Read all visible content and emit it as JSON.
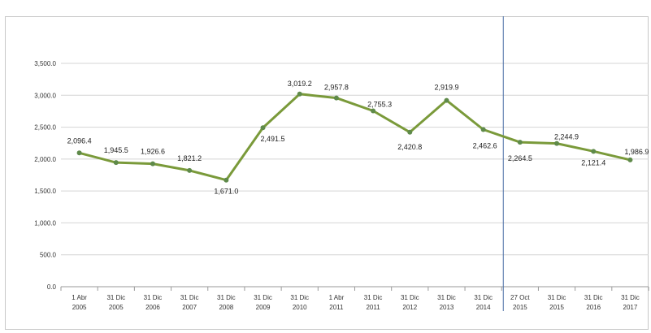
{
  "chart_data": {
    "type": "line",
    "title": "",
    "xlabel": "",
    "ylabel": "",
    "ylim": [
      0,
      3500
    ],
    "y_ticks": [
      "0.0",
      "500.0",
      "1,000.0",
      "1,500.0",
      "2,000.0",
      "2,500.0",
      "3,000.0",
      "3,500.0"
    ],
    "grid": true,
    "legend": "none",
    "line_color": "#7a9a3a",
    "marker_color": "#5f8a4a",
    "vline_color": "#4a6fa5",
    "vline_category_index": 12,
    "categories": [
      [
        "1 Abr",
        "2005"
      ],
      [
        "31 Dic",
        "2005"
      ],
      [
        "31 Dic",
        "2006"
      ],
      [
        "31 Dic",
        "2007"
      ],
      [
        "31 Dic",
        "2008"
      ],
      [
        "31 Dic",
        "2009"
      ],
      [
        "31 Dic",
        "2010"
      ],
      [
        "1 Abr",
        "2011"
      ],
      [
        "31 Dic",
        "2011"
      ],
      [
        "31 Dic",
        "2012"
      ],
      [
        "31 Dic",
        "2013"
      ],
      [
        "31 Dic",
        "2014"
      ],
      [
        "27 Oct",
        "2015"
      ],
      [
        "31 Dic",
        "2015"
      ],
      [
        "31 Dic",
        "2016"
      ],
      [
        "31 Dic",
        "2017"
      ]
    ],
    "values": [
      2096.4,
      1945.5,
      1926.6,
      1821.2,
      1671.0,
      2491.5,
      3019.2,
      2957.8,
      2755.3,
      2420.8,
      2919.9,
      2462.6,
      2264.5,
      2244.9,
      2121.4,
      1986.9
    ],
    "value_labels": [
      "2,096.4",
      "1,945.5",
      "1,926.6",
      "1,821.2",
      "1,671.0",
      "2,491.5",
      "3,019.2",
      "2,957.8",
      "2,755.3",
      "2,420.8",
      "2,919.9",
      "2,462.6",
      "2,264.5",
      "2,244.9",
      "2,121.4",
      "1,986.9"
    ]
  }
}
